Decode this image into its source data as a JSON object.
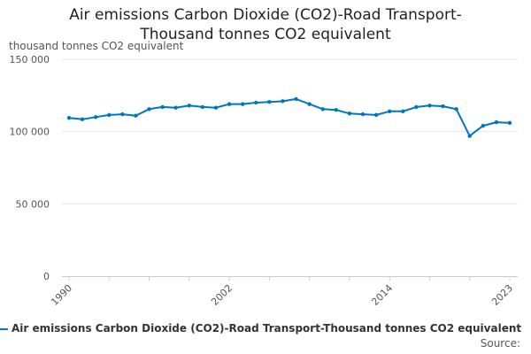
{
  "chart_data": {
    "type": "line",
    "title_line1": "Air emissions Carbon Dioxide (CO2)-Road Transport-",
    "title_line2": "Thousand tonnes CO2 equivalent",
    "ylabel": "thousand tonnes CO2 equivalent",
    "xlabel": "",
    "ylim": [
      0,
      150000
    ],
    "xlim": [
      1990,
      2023
    ],
    "y_ticks": [
      {
        "value": 0,
        "label": "0"
      },
      {
        "value": 50000,
        "label": "50 000"
      },
      {
        "value": 100000,
        "label": "100 000"
      },
      {
        "value": 150000,
        "label": "150 000"
      }
    ],
    "x_ticks": [
      {
        "value": 1990,
        "label": "1990"
      },
      {
        "value": 2002,
        "label": "2002"
      },
      {
        "value": 2014,
        "label": "2014"
      },
      {
        "value": 2023,
        "label": "2023"
      }
    ],
    "grid": "horizontal",
    "legend_position": "bottom",
    "series": [
      {
        "name": "Air emissions Carbon Dioxide (CO2)-Road Transport-Thousand tonnes CO2 equivalent",
        "color": "#0077bb",
        "x": [
          1990,
          1991,
          1992,
          1993,
          1994,
          1995,
          1996,
          1997,
          1998,
          1999,
          2000,
          2001,
          2002,
          2003,
          2004,
          2005,
          2006,
          2007,
          2008,
          2009,
          2010,
          2011,
          2012,
          2013,
          2014,
          2015,
          2016,
          2017,
          2018,
          2019,
          2020,
          2021,
          2022,
          2023
        ],
        "values": [
          109500,
          108500,
          110000,
          111500,
          112000,
          111000,
          115500,
          117000,
          116500,
          118000,
          117000,
          116500,
          119000,
          119000,
          120000,
          120500,
          121000,
          122500,
          119000,
          115500,
          115000,
          112500,
          112000,
          111500,
          114000,
          114000,
          117000,
          118000,
          117500,
          115500,
          97000,
          104000,
          106500,
          106000
        ]
      }
    ],
    "legend_label": "Air emissions Carbon Dioxide (CO2)-Road Transport-Thousand tonnes CO2 equivalent",
    "source_label": "Source:"
  }
}
